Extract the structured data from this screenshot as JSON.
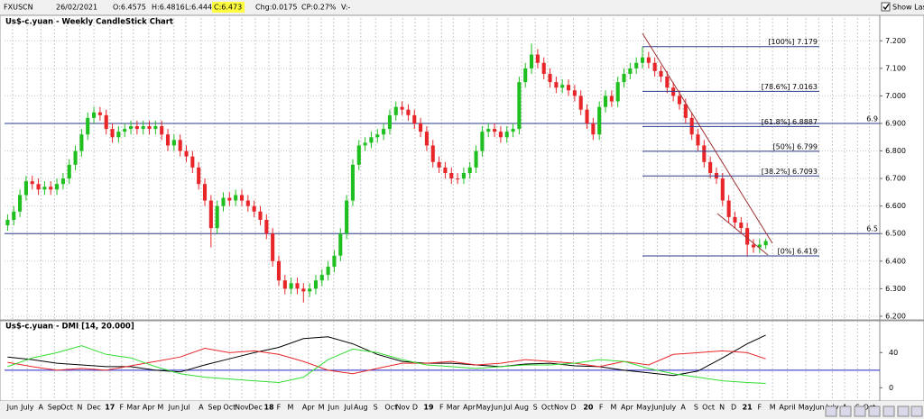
{
  "toolbar": {
    "symbol": "FXUSCN",
    "date": "26/02/2021",
    "open": "O:6.4575",
    "high": "H:6.4816",
    "low": "L:6.4441",
    "close": "C:6.473",
    "change": "Chg:0.0175",
    "change_pct": "CP:0.27%",
    "volume": "V:-",
    "show_last": "Show Last"
  },
  "chart_data": [
    {
      "type": "candlestick",
      "title": "Us$-c.yuan - Weekly CandleStick Chart",
      "open": [
        6.53,
        6.55,
        6.58,
        6.64,
        6.69,
        6.68,
        6.66,
        6.67,
        6.66,
        6.68,
        6.7,
        6.75,
        6.8,
        6.86,
        6.92,
        6.94,
        6.93,
        6.88,
        6.85,
        6.87,
        6.88,
        6.89,
        6.88,
        6.89,
        6.88,
        6.89,
        6.86,
        6.82,
        6.84,
        6.8,
        6.78,
        6.74,
        6.68,
        6.62,
        6.52,
        6.6,
        6.63,
        6.62,
        6.64,
        6.62,
        6.6,
        6.58,
        6.55,
        6.5,
        6.4,
        6.33,
        6.3,
        6.32,
        6.3,
        6.29,
        6.3,
        6.33,
        6.35,
        6.38,
        6.42,
        6.5,
        6.62,
        6.75,
        6.82,
        6.83,
        6.85,
        6.86,
        6.88,
        6.93,
        6.96,
        6.95,
        6.93,
        6.9,
        6.87,
        6.82,
        6.76,
        6.74,
        6.72,
        6.7,
        6.7,
        6.72,
        6.74,
        6.8,
        6.87,
        6.88,
        6.87,
        6.85,
        6.87,
        6.88,
        7.05,
        7.1,
        7.15,
        7.12,
        7.08,
        7.05,
        7.03,
        7.04,
        7.02,
        7.0,
        6.95,
        6.9,
        6.86,
        6.96,
        7.0,
        6.98,
        7.05,
        7.08,
        7.1,
        7.12,
        7.14,
        7.12,
        7.09,
        7.07,
        7.03,
        7.0,
        6.97,
        6.92,
        6.86,
        6.82,
        6.76,
        6.72,
        6.7,
        6.62,
        6.56,
        6.54,
        6.52,
        6.46,
        6.45,
        6.4575
      ],
      "high": [
        6.57,
        6.6,
        6.66,
        6.71,
        6.71,
        6.7,
        6.69,
        6.69,
        6.7,
        6.72,
        6.77,
        6.82,
        6.88,
        6.94,
        6.96,
        6.96,
        6.95,
        6.9,
        6.89,
        6.9,
        6.91,
        6.91,
        6.91,
        6.91,
        6.91,
        6.91,
        6.88,
        6.86,
        6.86,
        6.82,
        6.8,
        6.76,
        6.7,
        6.64,
        6.62,
        6.65,
        6.65,
        6.66,
        6.66,
        6.64,
        6.62,
        6.6,
        6.57,
        6.52,
        6.42,
        6.35,
        6.34,
        6.34,
        6.32,
        6.32,
        6.35,
        6.37,
        6.4,
        6.44,
        6.52,
        6.64,
        6.77,
        6.84,
        6.85,
        6.87,
        6.88,
        6.9,
        6.95,
        6.98,
        6.98,
        6.97,
        6.95,
        6.92,
        6.89,
        6.84,
        6.78,
        6.76,
        6.74,
        6.72,
        6.74,
        6.76,
        6.82,
        6.89,
        6.9,
        6.9,
        6.89,
        6.89,
        6.9,
        7.07,
        7.12,
        7.19,
        7.17,
        7.14,
        7.1,
        7.07,
        7.06,
        7.06,
        7.04,
        7.02,
        6.97,
        6.92,
        6.98,
        7.02,
        7.02,
        7.07,
        7.1,
        7.12,
        7.14,
        7.179,
        7.16,
        7.14,
        7.11,
        7.09,
        7.05,
        7.02,
        6.99,
        6.94,
        6.88,
        6.84,
        6.78,
        6.74,
        6.72,
        6.64,
        6.58,
        6.56,
        6.54,
        6.48,
        6.48,
        6.4816
      ],
      "low": [
        6.51,
        6.53,
        6.56,
        6.62,
        6.66,
        6.64,
        6.64,
        6.64,
        6.64,
        6.66,
        6.68,
        6.73,
        6.78,
        6.84,
        6.9,
        6.91,
        6.86,
        6.83,
        6.83,
        6.85,
        6.86,
        6.86,
        6.86,
        6.86,
        6.86,
        6.84,
        6.8,
        6.8,
        6.78,
        6.76,
        6.72,
        6.66,
        6.6,
        6.45,
        6.5,
        6.58,
        6.6,
        6.6,
        6.6,
        6.58,
        6.56,
        6.53,
        6.48,
        6.38,
        6.31,
        6.28,
        6.28,
        6.28,
        6.25,
        6.27,
        6.28,
        6.31,
        6.33,
        6.36,
        6.4,
        6.48,
        6.6,
        6.73,
        6.8,
        6.81,
        6.83,
        6.84,
        6.86,
        6.91,
        6.93,
        6.91,
        6.88,
        6.85,
        6.8,
        6.74,
        6.72,
        6.7,
        6.68,
        6.68,
        6.68,
        6.7,
        6.72,
        6.78,
        6.85,
        6.85,
        6.83,
        6.83,
        6.85,
        6.86,
        7.03,
        7.08,
        7.1,
        7.06,
        7.03,
        7.01,
        7.01,
        7.0,
        6.98,
        6.93,
        6.88,
        6.84,
        6.84,
        6.94,
        6.96,
        6.96,
        7.03,
        7.06,
        7.08,
        7.1,
        7.1,
        7.07,
        7.05,
        7.01,
        6.98,
        6.95,
        6.9,
        6.84,
        6.8,
        6.74,
        6.7,
        6.68,
        6.6,
        6.54,
        6.52,
        6.5,
        6.419,
        6.43,
        6.43,
        6.4441
      ],
      "close": [
        6.55,
        6.58,
        6.64,
        6.69,
        6.68,
        6.66,
        6.67,
        6.66,
        6.68,
        6.7,
        6.75,
        6.8,
        6.86,
        6.92,
        6.94,
        6.93,
        6.88,
        6.85,
        6.87,
        6.88,
        6.89,
        6.88,
        6.89,
        6.88,
        6.89,
        6.86,
        6.82,
        6.84,
        6.8,
        6.78,
        6.74,
        6.68,
        6.62,
        6.52,
        6.6,
        6.63,
        6.62,
        6.64,
        6.62,
        6.6,
        6.58,
        6.55,
        6.5,
        6.4,
        6.33,
        6.3,
        6.32,
        6.3,
        6.29,
        6.3,
        6.33,
        6.35,
        6.38,
        6.42,
        6.5,
        6.62,
        6.75,
        6.82,
        6.83,
        6.85,
        6.86,
        6.88,
        6.93,
        6.96,
        6.95,
        6.93,
        6.9,
        6.87,
        6.82,
        6.76,
        6.74,
        6.72,
        6.7,
        6.7,
        6.72,
        6.74,
        6.8,
        6.87,
        6.88,
        6.87,
        6.85,
        6.87,
        6.88,
        7.05,
        7.1,
        7.15,
        7.12,
        7.08,
        7.05,
        7.03,
        7.04,
        7.02,
        7.0,
        6.95,
        6.9,
        6.86,
        6.96,
        7.0,
        6.98,
        7.05,
        7.08,
        7.1,
        7.12,
        7.14,
        7.12,
        7.09,
        7.07,
        7.03,
        7.0,
        6.97,
        6.92,
        6.86,
        6.82,
        6.76,
        6.72,
        6.7,
        6.62,
        6.56,
        6.54,
        6.52,
        6.46,
        6.45,
        6.46,
        6.473
      ],
      "up_color": "#1fbf1f",
      "down_color": "#e8262a",
      "xlim": [
        -0.5,
        141.5
      ],
      "ylim": [
        6.19,
        7.25
      ],
      "yticks": [
        {
          "value": 6.2,
          "label": "6.200"
        },
        {
          "value": 6.3,
          "label": "6.300"
        },
        {
          "value": 6.4,
          "label": "6.400"
        },
        {
          "value": 6.5,
          "label": "6.500"
        },
        {
          "value": 6.6,
          "label": "6.600"
        },
        {
          "value": 6.7,
          "label": "6.700"
        },
        {
          "value": 6.8,
          "label": "6.800"
        },
        {
          "value": 6.9,
          "label": "6.900"
        },
        {
          "value": 7.0,
          "label": "7.000"
        },
        {
          "value": 7.1,
          "label": "7.100"
        },
        {
          "value": 7.2,
          "label": "7.200"
        }
      ],
      "xticks": [
        {
          "value": 0.8,
          "label": "Jun"
        },
        {
          "value": 3.2,
          "label": "July"
        },
        {
          "value": 5.4,
          "label": "A"
        },
        {
          "value": 7.6,
          "label": "Sep"
        },
        {
          "value": 9.6,
          "label": "Oct"
        },
        {
          "value": 11.7,
          "label": "N"
        },
        {
          "value": 14.0,
          "label": "Dec"
        },
        {
          "value": 16.6,
          "label": "17"
        },
        {
          "value": 18.5,
          "label": "F"
        },
        {
          "value": 20.4,
          "label": "Mar"
        },
        {
          "value": 22.9,
          "label": "Apr"
        },
        {
          "value": 24.8,
          "label": "M"
        },
        {
          "value": 27.0,
          "label": "Jun"
        },
        {
          "value": 28.9,
          "label": "Jul"
        },
        {
          "value": 31.4,
          "label": "A"
        },
        {
          "value": 33.6,
          "label": "Sep"
        },
        {
          "value": 36.0,
          "label": "Oct"
        },
        {
          "value": 38.0,
          "label": "Nov"
        },
        {
          "value": 40.2,
          "label": "Dec"
        },
        {
          "value": 42.4,
          "label": "18"
        },
        {
          "value": 44.0,
          "label": "F"
        },
        {
          "value": 45.9,
          "label": "M"
        },
        {
          "value": 48.8,
          "label": "Apr"
        },
        {
          "value": 50.9,
          "label": "M"
        },
        {
          "value": 52.9,
          "label": "Jun"
        },
        {
          "value": 55.3,
          "label": "Jul"
        },
        {
          "value": 57.3,
          "label": "Aug"
        },
        {
          "value": 59.7,
          "label": "S"
        },
        {
          "value": 62.2,
          "label": "Oct"
        },
        {
          "value": 64.1,
          "label": "Nov"
        },
        {
          "value": 66.1,
          "label": "D"
        },
        {
          "value": 68.3,
          "label": "19"
        },
        {
          "value": 70.4,
          "label": "F"
        },
        {
          "value": 72.3,
          "label": "Mar"
        },
        {
          "value": 74.9,
          "label": "Apr"
        },
        {
          "value": 77.2,
          "label": "May"
        },
        {
          "value": 79.4,
          "label": "Jun"
        },
        {
          "value": 81.2,
          "label": "Jul"
        },
        {
          "value": 83.4,
          "label": "Aug"
        },
        {
          "value": 85.6,
          "label": "S"
        },
        {
          "value": 87.6,
          "label": "Oct"
        },
        {
          "value": 89.8,
          "label": "Nov"
        },
        {
          "value": 91.8,
          "label": "D"
        },
        {
          "value": 94.2,
          "label": "20"
        },
        {
          "value": 96.3,
          "label": "F"
        },
        {
          "value": 98.3,
          "label": "M"
        },
        {
          "value": 100.5,
          "label": "Apr"
        },
        {
          "value": 103.2,
          "label": "May"
        },
        {
          "value": 105.4,
          "label": "Jun"
        },
        {
          "value": 107.4,
          "label": "July"
        },
        {
          "value": 109.6,
          "label": "A"
        },
        {
          "value": 111.7,
          "label": "S"
        },
        {
          "value": 113.7,
          "label": "Oct"
        },
        {
          "value": 115.9,
          "label": "N"
        },
        {
          "value": 117.8,
          "label": "D"
        },
        {
          "value": 120.0,
          "label": "21"
        },
        {
          "value": 122.0,
          "label": "F"
        },
        {
          "value": 124.1,
          "label": "M"
        },
        {
          "value": 126.5,
          "label": "April"
        },
        {
          "value": 129.5,
          "label": "May"
        },
        {
          "value": 131.6,
          "label": "Jun"
        },
        {
          "value": 133.8,
          "label": "July"
        },
        {
          "value": 135.8,
          "label": "A"
        },
        {
          "value": 137.9,
          "label": "S"
        },
        {
          "value": 139.8,
          "label": "Oct"
        }
      ],
      "grid": true,
      "hlines": [
        {
          "value": 6.9,
          "label": "6.9"
        },
        {
          "value": 6.5,
          "label": "6.5"
        }
      ],
      "fib_levels": [
        {
          "value": 7.179,
          "label": "[100%] 7.179"
        },
        {
          "value": 7.0163,
          "label": "[78.6%] 7.0163"
        },
        {
          "value": 6.8887,
          "label": "[61.8%] 6.8887"
        },
        {
          "value": 6.799,
          "label": "[50%] 6.799"
        },
        {
          "value": 6.7093,
          "label": "[38.2%] 6.7093"
        },
        {
          "value": 6.419,
          "label": "[0%] 6.419"
        }
      ],
      "line_color": "#2b3a8c"
    },
    {
      "type": "line",
      "title": "Us$-c.yuan - DMI [14, 20.000]",
      "x": [
        0,
        4,
        8,
        12,
        16,
        20,
        24,
        28,
        32,
        36,
        40,
        44,
        48,
        52,
        56,
        60,
        64,
        68,
        72,
        76,
        80,
        84,
        88,
        92,
        96,
        100,
        104,
        108,
        112,
        116,
        120,
        123
      ],
      "series": [
        {
          "color": "#000000",
          "values": [
            35,
            32,
            28,
            26,
            24,
            24,
            20,
            18,
            26,
            33,
            40,
            46,
            56,
            58,
            50,
            38,
            30,
            28,
            28,
            26,
            24,
            27,
            28,
            25,
            24,
            20,
            17,
            14,
            19,
            34,
            50,
            60
          ]
        },
        {
          "color": "#e8262a",
          "values": [
            29,
            24,
            20,
            22,
            20,
            25,
            30,
            35,
            45,
            40,
            42,
            38,
            30,
            20,
            16,
            22,
            28,
            28,
            30,
            26,
            28,
            32,
            30,
            28,
            24,
            30,
            26,
            38,
            40,
            42,
            40,
            33
          ]
        },
        {
          "color": "#33dd33",
          "values": [
            24,
            34,
            40,
            48,
            38,
            34,
            24,
            16,
            12,
            10,
            8,
            6,
            12,
            32,
            44,
            40,
            32,
            26,
            24,
            22,
            24,
            26,
            26,
            28,
            32,
            30,
            22,
            16,
            12,
            8,
            6,
            5
          ]
        }
      ],
      "xlim": [
        -0.5,
        141.5
      ],
      "ylim": [
        -14,
        66
      ],
      "yticks": [
        0,
        40
      ],
      "grid": true,
      "threshold": 20,
      "threshold_color": "#2020c8"
    }
  ]
}
